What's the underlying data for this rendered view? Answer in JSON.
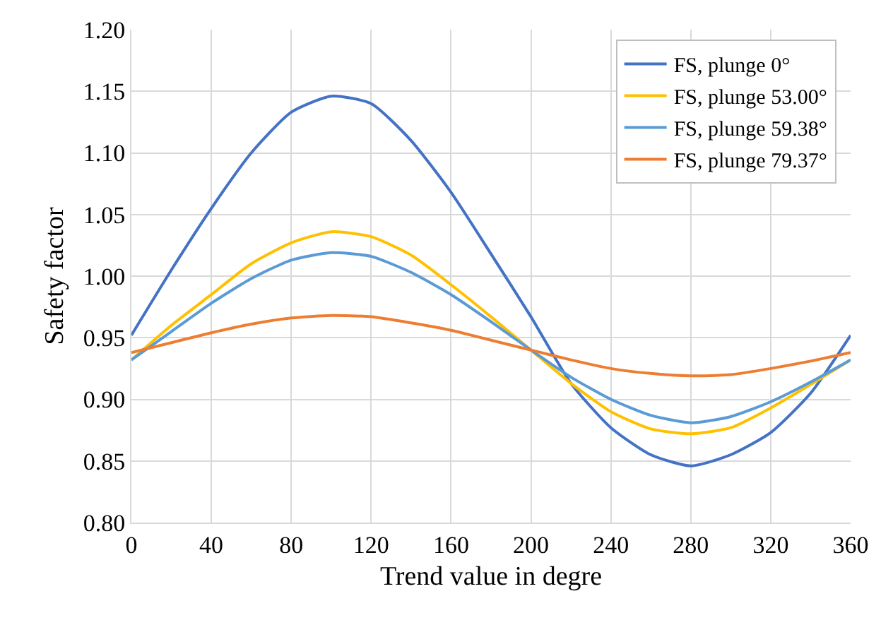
{
  "chart_data": {
    "type": "line",
    "xlabel": "Trend value in degre",
    "ylabel": "Safety factor",
    "x": [
      0,
      20,
      40,
      60,
      80,
      100,
      120,
      140,
      160,
      180,
      200,
      220,
      240,
      260,
      280,
      300,
      320,
      340,
      360
    ],
    "series": [
      {
        "name": "FS, plunge 0°",
        "color": "#4472c4",
        "values": [
          0.952,
          1.005,
          1.055,
          1.1,
          1.133,
          1.146,
          1.14,
          1.11,
          1.068,
          1.018,
          0.967,
          0.913,
          0.877,
          0.855,
          0.846,
          0.855,
          0.873,
          0.905,
          0.952
        ]
      },
      {
        "name": "FS, plunge 53.00°",
        "color": "#ffc000",
        "values": [
          0.932,
          0.96,
          0.985,
          1.01,
          1.027,
          1.036,
          1.032,
          1.017,
          0.993,
          0.967,
          0.94,
          0.913,
          0.89,
          0.876,
          0.872,
          0.877,
          0.893,
          0.912,
          0.932
        ]
      },
      {
        "name": "FS, plunge 59.38°",
        "color": "#5b9bd5",
        "values": [
          0.932,
          0.955,
          0.978,
          0.998,
          1.013,
          1.019,
          1.016,
          1.003,
          0.985,
          0.963,
          0.94,
          0.918,
          0.9,
          0.887,
          0.881,
          0.886,
          0.898,
          0.914,
          0.932
        ]
      },
      {
        "name": "FS, plunge 79.37°",
        "color": "#ed7d31",
        "values": [
          0.938,
          0.946,
          0.954,
          0.961,
          0.966,
          0.968,
          0.967,
          0.962,
          0.956,
          0.948,
          0.94,
          0.932,
          0.925,
          0.921,
          0.919,
          0.92,
          0.925,
          0.931,
          0.938
        ]
      }
    ],
    "xlim": [
      0,
      360
    ],
    "xticks": [
      0,
      40,
      80,
      120,
      160,
      200,
      240,
      280,
      320,
      360
    ],
    "ylim": [
      0.8,
      1.2
    ],
    "yticks": [
      {
        "value": 0.8,
        "label": "0.80"
      },
      {
        "value": 0.85,
        "label": "0.85"
      },
      {
        "value": 0.9,
        "label": "0.90"
      },
      {
        "value": 0.95,
        "label": "0.95"
      },
      {
        "value": 1.0,
        "label": "1.00"
      },
      {
        "value": 1.05,
        "label": "1.05"
      },
      {
        "value": 1.1,
        "label": "1.10"
      },
      {
        "value": 1.15,
        "label": "1.15"
      },
      {
        "value": 1.2,
        "label": "1.20"
      }
    ],
    "grid": true,
    "legend": "top right",
    "marker": "none",
    "line_style": "solid"
  }
}
